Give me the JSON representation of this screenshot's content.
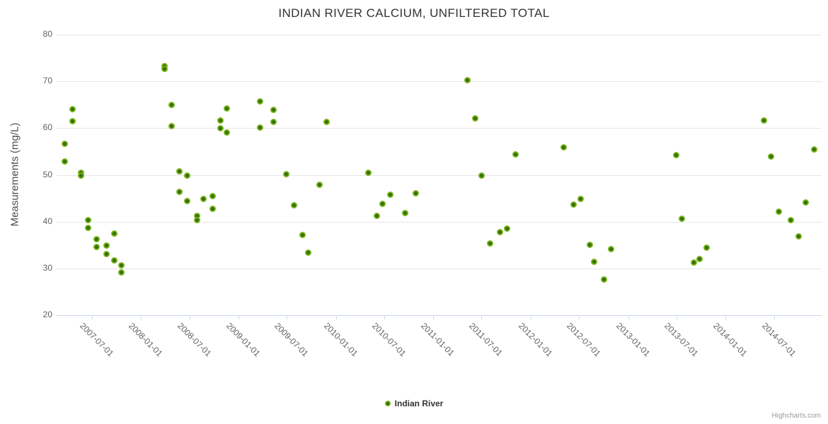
{
  "chart_data": {
    "type": "scatter",
    "title": "INDIAN RIVER CALCIUM, UNFILTERED TOTAL",
    "xlabel": "",
    "ylabel": "Measurements (mg/L)",
    "ylim": [
      20,
      80
    ],
    "y_ticks": [
      20,
      30,
      40,
      50,
      60,
      70,
      80
    ],
    "x_tick_labels": [
      "2007-07-01",
      "2008-01-01",
      "2008-07-01",
      "2009-01-01",
      "2009-07-01",
      "2010-01-01",
      "2010-07-01",
      "2011-01-01",
      "2011-07-01",
      "2012-01-01",
      "2012-07-01",
      "2013-01-01",
      "2013-07-01",
      "2014-01-01",
      "2014-07-01"
    ],
    "x_range": [
      "2007-02-19",
      "2014-12-27"
    ],
    "grid": "horizontal-only",
    "legend_position": "bottom-center",
    "credits": "Highcharts.com",
    "colors": {
      "series": "#7ab41c",
      "marker_center": "#346f05",
      "grid": "#e6e6e6",
      "axis_line": "#ccd6eb",
      "axis_labels": "#606060",
      "title": "#333333",
      "background": "#ffffff"
    },
    "series": [
      {
        "name": "Indian River",
        "color": "#7ab41c",
        "points": [
          [
            "2007-03-21",
            56.7
          ],
          [
            "2007-03-21",
            52.8
          ],
          [
            "2007-04-19",
            64.0
          ],
          [
            "2007-04-19",
            61.5
          ],
          [
            "2007-05-22",
            50.5
          ],
          [
            "2007-05-22",
            49.8
          ],
          [
            "2007-06-18",
            40.3
          ],
          [
            "2007-06-18",
            38.7
          ],
          [
            "2007-07-18",
            36.2
          ],
          [
            "2007-07-18",
            34.6
          ],
          [
            "2007-08-25",
            34.9
          ],
          [
            "2007-08-25",
            33.0
          ],
          [
            "2007-09-22",
            37.4
          ],
          [
            "2007-09-22",
            31.7
          ],
          [
            "2007-10-20",
            30.6
          ],
          [
            "2007-10-20",
            29.2
          ],
          [
            "2008-03-29",
            73.2
          ],
          [
            "2008-03-29",
            72.6
          ],
          [
            "2008-04-26",
            65.0
          ],
          [
            "2008-04-26",
            60.5
          ],
          [
            "2008-05-24",
            50.8
          ],
          [
            "2008-05-24",
            46.4
          ],
          [
            "2008-06-23",
            49.9
          ],
          [
            "2008-06-23",
            44.4
          ],
          [
            "2008-07-29",
            41.2
          ],
          [
            "2008-07-29",
            40.4
          ],
          [
            "2008-08-22",
            44.9
          ],
          [
            "2008-09-26",
            45.4
          ],
          [
            "2008-09-26",
            42.7
          ],
          [
            "2008-10-26",
            61.7
          ],
          [
            "2008-10-26",
            59.9
          ],
          [
            "2008-11-18",
            64.2
          ],
          [
            "2008-11-18",
            59.1
          ],
          [
            "2009-03-22",
            65.7
          ],
          [
            "2009-03-22",
            60.2
          ],
          [
            "2009-05-11",
            63.9
          ],
          [
            "2009-05-11",
            61.4
          ],
          [
            "2009-06-28",
            50.1
          ],
          [
            "2009-07-28",
            43.5
          ],
          [
            "2009-08-30",
            37.1
          ],
          [
            "2009-09-20",
            33.3
          ],
          [
            "2009-11-01",
            47.9
          ],
          [
            "2009-11-26",
            61.3
          ],
          [
            "2010-05-03",
            50.5
          ],
          [
            "2010-06-03",
            41.2
          ],
          [
            "2010-06-25",
            43.8
          ],
          [
            "2010-07-23",
            45.7
          ],
          [
            "2010-09-18",
            41.8
          ],
          [
            "2010-10-28",
            46.0
          ],
          [
            "2011-05-08",
            70.2
          ],
          [
            "2011-06-08",
            62.1
          ],
          [
            "2011-07-01",
            49.9
          ],
          [
            "2011-08-02",
            35.3
          ],
          [
            "2011-09-09",
            37.8
          ],
          [
            "2011-10-05",
            38.5
          ],
          [
            "2011-11-05",
            54.4
          ],
          [
            "2012-05-03",
            55.9
          ],
          [
            "2012-06-10",
            43.6
          ],
          [
            "2012-07-06",
            44.9
          ],
          [
            "2012-08-11",
            35.0
          ],
          [
            "2012-08-26",
            31.4
          ],
          [
            "2012-10-01",
            27.7
          ],
          [
            "2012-10-29",
            34.2
          ],
          [
            "2013-07-01",
            54.2
          ],
          [
            "2013-07-21",
            40.7
          ],
          [
            "2013-09-03",
            31.2
          ],
          [
            "2013-09-26",
            32.0
          ],
          [
            "2013-10-22",
            34.5
          ],
          [
            "2014-05-25",
            61.7
          ],
          [
            "2014-06-19",
            54.0
          ],
          [
            "2014-07-19",
            42.1
          ],
          [
            "2014-09-03",
            40.4
          ],
          [
            "2014-10-03",
            36.9
          ],
          [
            "2014-10-27",
            44.1
          ],
          [
            "2014-11-29",
            55.4
          ]
        ]
      }
    ]
  }
}
